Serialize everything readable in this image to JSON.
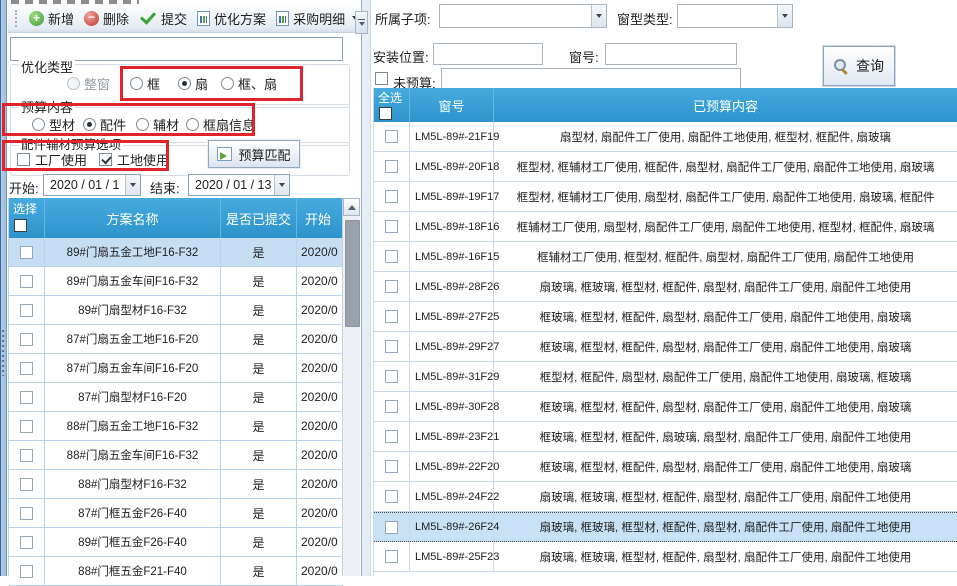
{
  "colors": {
    "header_blue": "#36a0d9",
    "annotation_red": "#e1232b",
    "selection_blue": "#c8e0f6"
  },
  "left_panel": {
    "toolbar": {
      "items": [
        {
          "label": "新增",
          "icon": "add-icon"
        },
        {
          "label": "删除",
          "icon": "delete-icon"
        },
        {
          "label": "提交",
          "icon": "check-icon"
        },
        {
          "label": "优化方案",
          "icon": "doc-chart-icon"
        },
        {
          "label": "采购明细",
          "icon": "doc-chart-icon",
          "has_dropdown": true
        }
      ]
    },
    "search_value": "",
    "groups": {
      "optimization_type": {
        "label": "优化类型",
        "options": [
          {
            "label": "整窗",
            "disabled": true
          },
          {
            "label": "框"
          },
          {
            "label": "扇",
            "selected": true
          },
          {
            "label": "框、扇"
          }
        ]
      },
      "budget_content": {
        "label": "预算内容",
        "options": [
          {
            "label": "型材"
          },
          {
            "label": "配件",
            "selected": true
          },
          {
            "label": "辅材"
          },
          {
            "label": "框扇信息"
          }
        ]
      },
      "accessory_options": {
        "label": "配件辅材预算选项",
        "options": [
          {
            "label": "工厂使用",
            "checked": false
          },
          {
            "label": "工地使用",
            "checked": true
          }
        ]
      }
    },
    "budget_match_button": "预算匹配",
    "date_range": {
      "start_label": "开始:",
      "start_value": "2020 / 01 / 1",
      "end_label": "结束:",
      "end_value": "2020 / 01 / 13"
    },
    "table": {
      "headers": [
        "选择",
        "方案名称",
        "是否已提交",
        "开始"
      ],
      "rows": [
        {
          "name": "89#门扇五金工地F16-F32",
          "submitted": "是",
          "start": "2020/0",
          "selected": true
        },
        {
          "name": "89#门扇五金车间F16-F32",
          "submitted": "是",
          "start": "2020/0"
        },
        {
          "name": "89#门扇型材F16-F32",
          "submitted": "是",
          "start": "2020/0"
        },
        {
          "name": "87#门扇五金工地F16-F20",
          "submitted": "是",
          "start": "2020/0"
        },
        {
          "name": "87#门扇五金车间F16-F20",
          "submitted": "是",
          "start": "2020/0"
        },
        {
          "name": "87#门扇型材F16-F20",
          "submitted": "是",
          "start": "2020/0"
        },
        {
          "name": "88#门扇五金工地F16-F32",
          "submitted": "是",
          "start": "2020/0"
        },
        {
          "name": "88#门扇五金车间F16-F32",
          "submitted": "是",
          "start": "2020/0"
        },
        {
          "name": "88#门扇型材F16-F32",
          "submitted": "是",
          "start": "2020/0"
        },
        {
          "name": "87#门框五金F26-F40",
          "submitted": "是",
          "start": "2020/0"
        },
        {
          "name": "89#门框五金F26-F40",
          "submitted": "是",
          "start": "2020/0"
        },
        {
          "name": "88#门框五金F21-F40",
          "submitted": "是",
          "start": "2020/0"
        }
      ]
    }
  },
  "right_panel": {
    "filters": {
      "sub_item_label": "所属子项:",
      "sub_item_value": "",
      "window_type_label": "窗型类型:",
      "window_type_value": "",
      "install_position_label": "安装位置:",
      "install_position_value": "",
      "window_no_label": "窗号:",
      "window_no_value": "",
      "unbudgeted_label": "未预算:",
      "unbudgeted_checked": false,
      "unbudgeted_value": ""
    },
    "query_button": "查询",
    "table": {
      "headers": [
        "全选",
        "窗号",
        "已预算内容"
      ],
      "rows": [
        {
          "window_no": "LM5L-89#-21F19",
          "content": "扇型材, 扇配件工厂使用, 扇配件工地使用, 框型材, 框配件, 扇玻璃"
        },
        {
          "window_no": "LM5L-89#-20F18",
          "content": "框型材, 框辅材工厂使用, 框配件, 扇型材, 扇配件工厂使用, 扇配件工地使用, 扇玻璃"
        },
        {
          "window_no": "LM5L-89#-19F17",
          "content": "框型材, 框辅材工厂使用, 扇型材, 扇配件工厂使用, 扇配件工地使用, 扇玻璃, 框配件"
        },
        {
          "window_no": "LM5L-89#-18F16",
          "content": "框辅材工厂使用, 扇型材, 扇配件工厂使用, 扇配件工地使用, 框型材, 框配件, 扇玻璃"
        },
        {
          "window_no": "LM5L-89#-16F15",
          "content": "框辅材工厂使用, 框型材, 框配件, 扇型材, 扇配件工厂使用, 扇配件工地使用"
        },
        {
          "window_no": "LM5L-89#-28F26",
          "content": "扇玻璃, 框玻璃, 框型材, 框配件, 扇型材, 扇配件工厂使用, 扇配件工地使用"
        },
        {
          "window_no": "LM5L-89#-27F25",
          "content": "框玻璃, 框型材, 框配件, 扇型材, 扇配件工厂使用, 扇配件工地使用, 扇玻璃"
        },
        {
          "window_no": "LM5L-89#-29F27",
          "content": "框玻璃, 框型材, 框配件, 扇型材, 扇配件工厂使用, 扇配件工地使用, 扇玻璃"
        },
        {
          "window_no": "LM5L-89#-31F29",
          "content": "框型材, 框配件, 扇型材, 扇配件工厂使用, 扇配件工地使用, 扇玻璃, 框玻璃"
        },
        {
          "window_no": "LM5L-89#-30F28",
          "content": "框玻璃, 框型材, 框配件, 扇型材, 扇配件工厂使用, 扇配件工地使用, 扇玻璃"
        },
        {
          "window_no": "LM5L-89#-23F21",
          "content": "框玻璃, 框型材, 框配件, 扇玻璃, 扇型材, 扇配件工厂使用, 扇配件工地使用"
        },
        {
          "window_no": "LM5L-89#-22F20",
          "content": "框玻璃, 框型材, 框配件, 扇型材, 扇配件工厂使用, 扇配件工地使用, 扇玻璃"
        },
        {
          "window_no": "LM5L-89#-24F22",
          "content": "扇玻璃, 框玻璃, 框型材, 框配件, 扇型材, 扇配件工厂使用, 扇配件工地使用"
        },
        {
          "window_no": "LM5L-89#-26F24",
          "content": "扇玻璃, 框玻璃, 框型材, 框配件, 扇型材, 扇配件工厂使用, 扇配件工地使用",
          "selected": true
        },
        {
          "window_no": "LM5L-89#-25F23",
          "content": "扇玻璃, 框玻璃, 框型材, 框配件, 扇型材, 扇配件工厂使用, 扇配件工地使用"
        }
      ]
    }
  }
}
